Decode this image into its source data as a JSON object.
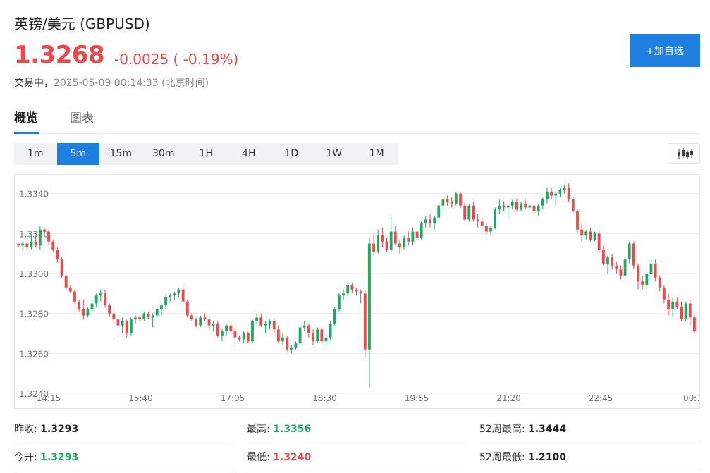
{
  "header": {
    "title": "英镑/美元 (GBPUSD)",
    "price": "1.3268",
    "change": "-0.0025 ( -0.19%)",
    "status_label": "交易中，",
    "timestamp": "2025-05-09 00:14:33 (北京时间)",
    "watch_button": "+加自选"
  },
  "colors": {
    "up": "#1fa860",
    "down": "#f04848",
    "accent": "#1f7fe0"
  },
  "tabs": [
    {
      "label": "概览",
      "active": true
    },
    {
      "label": "图表",
      "active": false
    }
  ],
  "periods": [
    {
      "label": "1m",
      "active": false
    },
    {
      "label": "5m",
      "active": true
    },
    {
      "label": "15m",
      "active": false
    },
    {
      "label": "30m",
      "active": false
    },
    {
      "label": "1H",
      "active": false
    },
    {
      "label": "4H",
      "active": false
    },
    {
      "label": "1D",
      "active": false
    },
    {
      "label": "1W",
      "active": false
    },
    {
      "label": "1M",
      "active": false
    }
  ],
  "chart_toggle_icon": "candlestick-icon",
  "chart_data": {
    "type": "candlestick",
    "ylim": [
      1.324,
      1.3348
    ],
    "yticks": [
      "1.3240",
      "1.3260",
      "1.3280",
      "1.3300",
      "1.3320",
      "1.3340"
    ],
    "xticks": [
      "14:15",
      "15:40",
      "17:05",
      "18:30",
      "19:55",
      "21:20",
      "22:45",
      "00:1"
    ],
    "grid": true,
    "candles": [
      [
        1.3315,
        1.3315,
        1.3313,
        1.3314
      ],
      [
        1.3314,
        1.3316,
        1.3311,
        1.3315
      ],
      [
        1.3315,
        1.3316,
        1.3312,
        1.3313
      ],
      [
        1.3313,
        1.3319,
        1.3312,
        1.3316
      ],
      [
        1.3316,
        1.3319,
        1.3313,
        1.3314
      ],
      [
        1.3314,
        1.3324,
        1.3312,
        1.3322
      ],
      [
        1.3322,
        1.3323,
        1.3319,
        1.3321
      ],
      [
        1.3321,
        1.3322,
        1.3314,
        1.3316
      ],
      [
        1.3316,
        1.3317,
        1.3311,
        1.3312
      ],
      [
        1.3312,
        1.3313,
        1.3306,
        1.3307
      ],
      [
        1.3307,
        1.3308,
        1.3298,
        1.3299
      ],
      [
        1.3299,
        1.33,
        1.3292,
        1.3293
      ],
      [
        1.3293,
        1.3294,
        1.329,
        1.3291
      ],
      [
        1.3291,
        1.3292,
        1.3285,
        1.3286
      ],
      [
        1.3286,
        1.3287,
        1.3281,
        1.3282
      ],
      [
        1.3282,
        1.3287,
        1.3277,
        1.3279
      ],
      [
        1.3279,
        1.3283,
        1.3278,
        1.3282
      ],
      [
        1.3282,
        1.3287,
        1.328,
        1.3285
      ],
      [
        1.3285,
        1.329,
        1.3283,
        1.3289
      ],
      [
        1.3289,
        1.3292,
        1.3286,
        1.329
      ],
      [
        1.329,
        1.3292,
        1.3283,
        1.3284
      ],
      [
        1.3284,
        1.3285,
        1.3278,
        1.328
      ],
      [
        1.328,
        1.3282,
        1.3275,
        1.3277
      ],
      [
        1.3277,
        1.3278,
        1.3267,
        1.3274
      ],
      [
        1.3274,
        1.3278,
        1.327,
        1.3276
      ],
      [
        1.3276,
        1.3277,
        1.3268,
        1.327
      ],
      [
        1.327,
        1.3278,
        1.3269,
        1.3277
      ],
      [
        1.3277,
        1.3279,
        1.3275,
        1.3278
      ],
      [
        1.3278,
        1.3279,
        1.3276,
        1.3277
      ],
      [
        1.3277,
        1.3281,
        1.3276,
        1.328
      ],
      [
        1.328,
        1.3281,
        1.3277,
        1.3278
      ],
      [
        1.3278,
        1.328,
        1.3273,
        1.3279
      ],
      [
        1.3279,
        1.3283,
        1.3278,
        1.3282
      ],
      [
        1.3282,
        1.3285,
        1.3279,
        1.3284
      ],
      [
        1.3284,
        1.3289,
        1.3282,
        1.3288
      ],
      [
        1.3288,
        1.329,
        1.3286,
        1.3289
      ],
      [
        1.3289,
        1.3291,
        1.3287,
        1.329
      ],
      [
        1.329,
        1.3293,
        1.3288,
        1.3292
      ],
      [
        1.3292,
        1.3294,
        1.3284,
        1.3286
      ],
      [
        1.3286,
        1.3287,
        1.3278,
        1.3279
      ],
      [
        1.3279,
        1.328,
        1.3276,
        1.3277
      ],
      [
        1.3277,
        1.3278,
        1.3273,
        1.3274
      ],
      [
        1.3274,
        1.3279,
        1.3273,
        1.3278
      ],
      [
        1.3278,
        1.328,
        1.3276,
        1.3277
      ],
      [
        1.3277,
        1.3278,
        1.3272,
        1.3274
      ],
      [
        1.3274,
        1.3276,
        1.3271,
        1.3275
      ],
      [
        1.3275,
        1.3276,
        1.3268,
        1.3269
      ],
      [
        1.3269,
        1.3272,
        1.3266,
        1.3271
      ],
      [
        1.3271,
        1.3275,
        1.3269,
        1.3274
      ],
      [
        1.3274,
        1.3275,
        1.327,
        1.3271
      ],
      [
        1.3271,
        1.3272,
        1.3263,
        1.3268
      ],
      [
        1.3268,
        1.3269,
        1.3266,
        1.3267
      ],
      [
        1.3267,
        1.3271,
        1.3265,
        1.327
      ],
      [
        1.327,
        1.3271,
        1.3265,
        1.3266
      ],
      [
        1.3266,
        1.3277,
        1.3265,
        1.3276
      ],
      [
        1.3276,
        1.328,
        1.3275,
        1.3278
      ],
      [
        1.3278,
        1.328,
        1.3273,
        1.3274
      ],
      [
        1.3274,
        1.3276,
        1.327,
        1.3275
      ],
      [
        1.3275,
        1.3277,
        1.3272,
        1.3276
      ],
      [
        1.3276,
        1.3277,
        1.327,
        1.3272
      ],
      [
        1.3272,
        1.3274,
        1.3265,
        1.3266
      ],
      [
        1.3266,
        1.327,
        1.3264,
        1.3268
      ],
      [
        1.3268,
        1.3269,
        1.3261,
        1.3262
      ],
      [
        1.3262,
        1.3264,
        1.326,
        1.3263
      ],
      [
        1.3263,
        1.3266,
        1.3262,
        1.3265
      ],
      [
        1.3265,
        1.3275,
        1.3264,
        1.3273
      ],
      [
        1.3273,
        1.3276,
        1.3271,
        1.3274
      ],
      [
        1.3274,
        1.3275,
        1.3268,
        1.327
      ],
      [
        1.327,
        1.3272,
        1.3264,
        1.3266
      ],
      [
        1.3266,
        1.3273,
        1.3265,
        1.3272
      ],
      [
        1.3272,
        1.3273,
        1.3265,
        1.3266
      ],
      [
        1.3266,
        1.327,
        1.3264,
        1.3268
      ],
      [
        1.3268,
        1.3276,
        1.3267,
        1.3275
      ],
      [
        1.3275,
        1.3283,
        1.3274,
        1.3282
      ],
      [
        1.3282,
        1.329,
        1.3281,
        1.3289
      ],
      [
        1.3289,
        1.3292,
        1.3287,
        1.329
      ],
      [
        1.329,
        1.3295,
        1.3288,
        1.3294
      ],
      [
        1.3294,
        1.3295,
        1.329,
        1.3292
      ],
      [
        1.3292,
        1.3293,
        1.3289,
        1.3291
      ],
      [
        1.3291,
        1.3292,
        1.3285,
        1.329
      ],
      [
        1.329,
        1.3292,
        1.3258,
        1.3262
      ],
      [
        1.3262,
        1.3318,
        1.3243,
        1.3315
      ],
      [
        1.3315,
        1.332,
        1.3309,
        1.3311
      ],
      [
        1.3311,
        1.3322,
        1.331,
        1.3319
      ],
      [
        1.3319,
        1.3323,
        1.3313,
        1.3316
      ],
      [
        1.3316,
        1.3318,
        1.3311,
        1.3312
      ],
      [
        1.3312,
        1.3328,
        1.3311,
        1.3321
      ],
      [
        1.3321,
        1.3324,
        1.3314,
        1.3315
      ],
      [
        1.3315,
        1.3317,
        1.331,
        1.3313
      ],
      [
        1.3313,
        1.3319,
        1.3312,
        1.3318
      ],
      [
        1.3318,
        1.3321,
        1.3314,
        1.3316
      ],
      [
        1.3316,
        1.3323,
        1.3314,
        1.3321
      ],
      [
        1.3321,
        1.3324,
        1.3317,
        1.3318
      ],
      [
        1.3318,
        1.3326,
        1.3317,
        1.3325
      ],
      [
        1.3325,
        1.3329,
        1.3323,
        1.3327
      ],
      [
        1.3327,
        1.333,
        1.3323,
        1.3325
      ],
      [
        1.3325,
        1.3329,
        1.3322,
        1.3328
      ],
      [
        1.3328,
        1.3335,
        1.3327,
        1.3334
      ],
      [
        1.3334,
        1.3338,
        1.3332,
        1.3337
      ],
      [
        1.3337,
        1.3339,
        1.3334,
        1.3336
      ],
      [
        1.3336,
        1.3338,
        1.3333,
        1.3335
      ],
      [
        1.3335,
        1.3341,
        1.3334,
        1.334
      ],
      [
        1.334,
        1.3341,
        1.3333,
        1.3334
      ],
      [
        1.3334,
        1.3336,
        1.3326,
        1.3327
      ],
      [
        1.3327,
        1.3335,
        1.3326,
        1.3334
      ],
      [
        1.3334,
        1.3336,
        1.3326,
        1.3327
      ],
      [
        1.3327,
        1.333,
        1.3323,
        1.3326
      ],
      [
        1.3326,
        1.3328,
        1.3322,
        1.3324
      ],
      [
        1.3324,
        1.3325,
        1.332,
        1.3321
      ],
      [
        1.3321,
        1.3324,
        1.3319,
        1.3323
      ],
      [
        1.3323,
        1.3333,
        1.3322,
        1.3332
      ],
      [
        1.3332,
        1.3337,
        1.333,
        1.3334
      ],
      [
        1.3334,
        1.3336,
        1.3331,
        1.3333
      ],
      [
        1.3333,
        1.3335,
        1.3328,
        1.3334
      ],
      [
        1.3334,
        1.3337,
        1.3332,
        1.3336
      ],
      [
        1.3336,
        1.3337,
        1.3331,
        1.3332
      ],
      [
        1.3332,
        1.3336,
        1.3331,
        1.3335
      ],
      [
        1.3335,
        1.3337,
        1.3332,
        1.3333
      ],
      [
        1.3333,
        1.3335,
        1.333,
        1.3334
      ],
      [
        1.3334,
        1.3336,
        1.3329,
        1.3331
      ],
      [
        1.3331,
        1.3335,
        1.3329,
        1.3334
      ],
      [
        1.3334,
        1.3338,
        1.3332,
        1.3337
      ],
      [
        1.3337,
        1.3343,
        1.3335,
        1.3341
      ],
      [
        1.3341,
        1.3343,
        1.3337,
        1.3339
      ],
      [
        1.3339,
        1.3341,
        1.3334,
        1.334
      ],
      [
        1.334,
        1.3343,
        1.3338,
        1.3342
      ],
      [
        1.3342,
        1.3344,
        1.334,
        1.3343
      ],
      [
        1.3343,
        1.3345,
        1.3336,
        1.3337
      ],
      [
        1.3337,
        1.3338,
        1.333,
        1.3331
      ],
      [
        1.3331,
        1.3332,
        1.332,
        1.3322
      ],
      [
        1.3322,
        1.3325,
        1.3316,
        1.3319
      ],
      [
        1.3319,
        1.3322,
        1.3317,
        1.3321
      ],
      [
        1.3321,
        1.3323,
        1.3316,
        1.3317
      ],
      [
        1.3317,
        1.3321,
        1.3316,
        1.332
      ],
      [
        1.332,
        1.3322,
        1.3311,
        1.3312
      ],
      [
        1.3312,
        1.3314,
        1.3304,
        1.3305
      ],
      [
        1.3305,
        1.3309,
        1.33,
        1.3308
      ],
      [
        1.3308,
        1.331,
        1.3302,
        1.3304
      ],
      [
        1.3304,
        1.3306,
        1.33,
        1.3302
      ],
      [
        1.3302,
        1.3304,
        1.3297,
        1.3299
      ],
      [
        1.3299,
        1.3308,
        1.3298,
        1.3307
      ],
      [
        1.3307,
        1.3316,
        1.3305,
        1.3315
      ],
      [
        1.3315,
        1.3316,
        1.3302,
        1.3304
      ],
      [
        1.3304,
        1.3305,
        1.3292,
        1.3296
      ],
      [
        1.3296,
        1.3299,
        1.3292,
        1.3294
      ],
      [
        1.3294,
        1.3301,
        1.3292,
        1.33
      ],
      [
        1.33,
        1.3306,
        1.3298,
        1.3305
      ],
      [
        1.3305,
        1.3307,
        1.3296,
        1.3298
      ],
      [
        1.3298,
        1.3299,
        1.3291,
        1.3293
      ],
      [
        1.3293,
        1.3294,
        1.3285,
        1.3287
      ],
      [
        1.3287,
        1.329,
        1.3279,
        1.3282
      ],
      [
        1.3282,
        1.3288,
        1.3278,
        1.3286
      ],
      [
        1.3286,
        1.3288,
        1.3282,
        1.3283
      ],
      [
        1.3283,
        1.3286,
        1.3276,
        1.3277
      ],
      [
        1.3277,
        1.3286,
        1.3276,
        1.3285
      ],
      [
        1.3285,
        1.3287,
        1.3274,
        1.3278
      ],
      [
        1.3278,
        1.3279,
        1.327,
        1.3271
      ]
    ]
  },
  "stats": [
    {
      "label": "昨收:",
      "value": "1.3293",
      "color": "black"
    },
    {
      "label": "最高:",
      "value": "1.3356",
      "color": "green"
    },
    {
      "label": "52周最高:",
      "value": "1.3444",
      "color": "black"
    },
    {
      "label": "今开:",
      "value": "1.3293",
      "color": "green"
    },
    {
      "label": "最低:",
      "value": "1.3240",
      "color": "red"
    },
    {
      "label": "52周最低:",
      "value": "1.2100",
      "color": "black"
    }
  ]
}
